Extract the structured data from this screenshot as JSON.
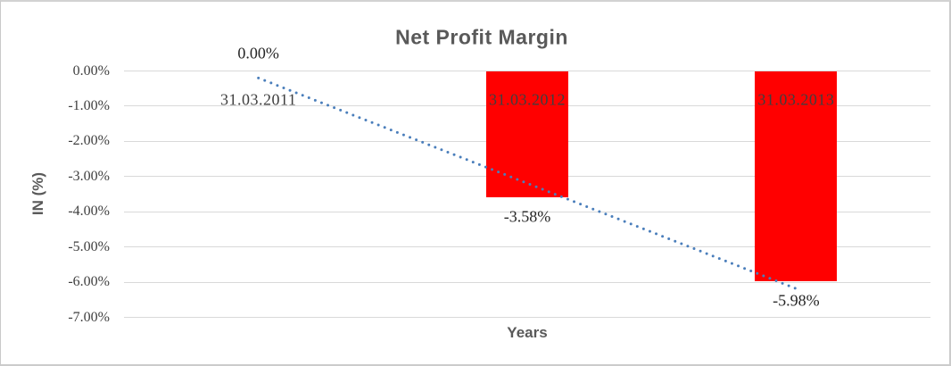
{
  "chart_data": {
    "type": "bar",
    "title": "Net Profit Margin",
    "xlabel": "Years",
    "ylabel": "IN (%)",
    "categories": [
      "31.03.2011",
      "31.03.2012",
      "31.03.2013"
    ],
    "values": [
      0,
      -3.58,
      -5.98
    ],
    "data_labels": [
      "0.00%",
      "-3.58%",
      "-5.98%"
    ],
    "y_ticks": [
      "0.00%",
      "-1.00%",
      "-2.00%",
      "-3.00%",
      "-4.00%",
      "-5.00%",
      "-6.00%",
      "-7.00%"
    ],
    "y_tick_values": [
      0,
      -1,
      -2,
      -3,
      -4,
      -5,
      -6,
      -7
    ],
    "ylim": [
      -7,
      0
    ],
    "grid": "horizontal",
    "legend": "none",
    "trendline": {
      "type": "linear",
      "style": "dotted",
      "fitted_start": -0.2,
      "fitted_end": -6.18
    },
    "colors": {
      "bar": "#FF0000",
      "trendline": "#4A7EBB",
      "gridline": "#D9D9D9",
      "title_text": "#595959",
      "axis_text": "#3F3F3F",
      "data_label_text": "#262626"
    }
  }
}
